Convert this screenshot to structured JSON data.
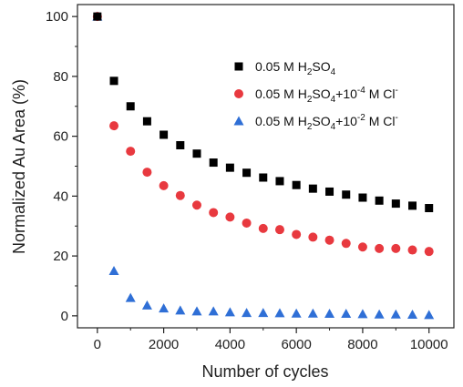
{
  "chart_data": {
    "type": "scatter",
    "xlabel": "Number of cycles",
    "ylabel": "Normalized Au Area (%)",
    "xlim": [
      -600,
      10750
    ],
    "ylim": [
      -4,
      104
    ],
    "x_ticks": [
      0,
      2000,
      4000,
      6000,
      8000,
      10000
    ],
    "x_tick_labels": [
      "0",
      "2000",
      "4000",
      "6000",
      "8000",
      "10000"
    ],
    "y_ticks": [
      0,
      20,
      40,
      60,
      80,
      100
    ],
    "y_tick_labels": [
      "0",
      "20",
      "40",
      "60",
      "80",
      "100"
    ],
    "grid": false,
    "legend_position": "top-right",
    "x": [
      0,
      500,
      1000,
      1500,
      2000,
      2500,
      3000,
      3500,
      4000,
      4500,
      5000,
      5500,
      6000,
      6500,
      7000,
      7500,
      8000,
      8500,
      9000,
      9500,
      10000
    ],
    "series": [
      {
        "name_parts": [
          "0.05 M H",
          "2",
          "SO",
          "4"
        ],
        "marker": "square",
        "color": "#000000",
        "values": [
          100,
          78.5,
          70,
          65,
          60.5,
          57,
          54.2,
          51.2,
          49.5,
          47.8,
          46.2,
          45,
          43.7,
          42.5,
          41.5,
          40.5,
          39.5,
          38.5,
          37.5,
          36.8,
          36
        ]
      },
      {
        "name_parts": [
          "0.05 M H",
          "2",
          "SO",
          "4",
          "+10",
          "-4",
          " M Cl",
          "-"
        ],
        "marker": "circle",
        "color": "#e8393f",
        "values": [
          100,
          63.5,
          55,
          48,
          43.5,
          40.2,
          37,
          34.5,
          33,
          31,
          29.2,
          28.8,
          27.2,
          26.3,
          25.3,
          24.2,
          23,
          22.5,
          22.5,
          22,
          21.5
        ]
      },
      {
        "name_parts": [
          "0.05 M H",
          "2",
          "SO",
          "4",
          "+10",
          "-2",
          " M Cl",
          "-"
        ],
        "marker": "triangle",
        "color": "#2f6fd6",
        "values": [
          100,
          15,
          6,
          3.5,
          2.5,
          1.8,
          1.5,
          1.5,
          1.2,
          1,
          1,
          0.9,
          0.8,
          0.8,
          0.7,
          0.7,
          0.6,
          0.5,
          0.5,
          0.4,
          0.3
        ]
      }
    ]
  }
}
